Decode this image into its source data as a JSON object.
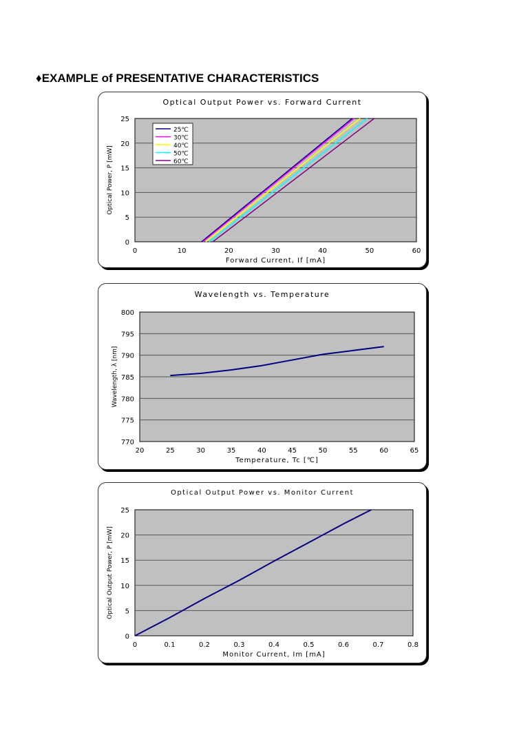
{
  "heading": {
    "bullet": "♦",
    "text": "EXAMPLE of PRESENTATIVE CHARACTERISTICS"
  },
  "chart_data": [
    {
      "type": "line",
      "title": "Optical Output Power vs. Forward Current",
      "xlabel": "Forward Current, If [mA]",
      "ylabel": "Optical Power, P [mW]",
      "xlim": [
        0,
        60
      ],
      "ylim": [
        0,
        25
      ],
      "xticks": [
        0,
        10,
        20,
        30,
        40,
        50,
        60
      ],
      "yticks": [
        0,
        5,
        10,
        15,
        20,
        25
      ],
      "grid": true,
      "legend": "top-left",
      "background": "#c0c0c0",
      "series": [
        {
          "name": "25℃",
          "color": "#000080",
          "x": [
            14.2,
            46.3
          ],
          "y": [
            0,
            25
          ]
        },
        {
          "name": "30℃",
          "color": "#ff00ff",
          "x": [
            14.5,
            46.7
          ],
          "y": [
            0,
            25
          ]
        },
        {
          "name": "40℃",
          "color": "#ffff00",
          "x": [
            15.1,
            48.0
          ],
          "y": [
            0,
            25
          ]
        },
        {
          "name": "50℃",
          "color": "#00ffff",
          "x": [
            15.8,
            49.5
          ],
          "y": [
            0,
            25
          ]
        },
        {
          "name": "60℃",
          "color": "#800080",
          "x": [
            16.6,
            51.0
          ],
          "y": [
            0,
            25
          ]
        }
      ]
    },
    {
      "type": "line",
      "title": "Wavelength vs. Temperature",
      "xlabel": "Temperature, Tc [℃]",
      "ylabel": "Wavelength, λ [nm]",
      "xlim": [
        20,
        65
      ],
      "ylim": [
        770,
        800
      ],
      "xticks": [
        20,
        25,
        30,
        35,
        40,
        45,
        50,
        55,
        60,
        65
      ],
      "yticks": [
        770,
        775,
        780,
        785,
        790,
        795,
        800
      ],
      "grid": true,
      "background": "#c0c0c0",
      "series": [
        {
          "color": "#000080",
          "x": [
            25,
            30,
            35,
            40,
            45,
            50,
            55,
            60
          ],
          "y": [
            785.3,
            785.8,
            786.6,
            787.6,
            788.9,
            790.2,
            791.1,
            792.0
          ]
        }
      ]
    },
    {
      "type": "line",
      "title": "Optical Output Power vs. Monitor Current",
      "xlabel": "Monitor Current, Im [mA]",
      "ylabel": "Optical Output Power, P [mW]",
      "xlim": [
        0,
        0.8
      ],
      "ylim": [
        0,
        25
      ],
      "xticks": [
        0,
        0.1,
        0.2,
        0.3,
        0.4,
        0.5,
        0.6,
        0.7,
        0.8
      ],
      "yticks": [
        0,
        5,
        10,
        15,
        20,
        25
      ],
      "grid": true,
      "background": "#c0c0c0",
      "series": [
        {
          "color": "#000080",
          "x": [
            0,
            0.1,
            0.2,
            0.3,
            0.4,
            0.5,
            0.6,
            0.68
          ],
          "y": [
            0,
            3.6,
            7.4,
            11.0,
            14.8,
            18.5,
            22.2,
            25
          ]
        }
      ]
    }
  ]
}
